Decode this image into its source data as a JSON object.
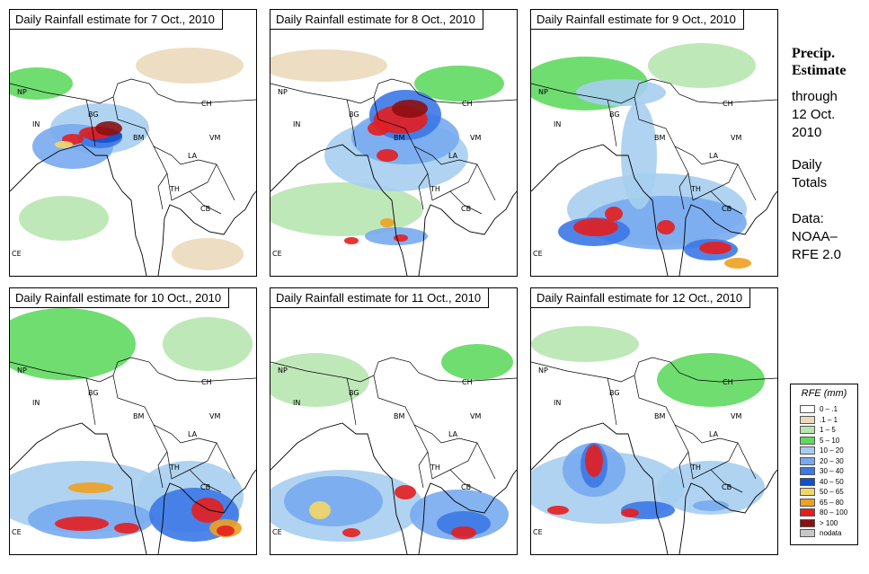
{
  "panels": [
    {
      "title": "Daily Rainfall estimate for  7 Oct., 2010"
    },
    {
      "title": "Daily Rainfall estimate for  8 Oct., 2010"
    },
    {
      "title": "Daily Rainfall estimate for  9 Oct., 2010"
    },
    {
      "title": "Daily Rainfall estimate for  10 Oct., 2010"
    },
    {
      "title": "Daily Rainfall estimate for  11 Oct., 2010"
    },
    {
      "title": "Daily Rainfall estimate for  12 Oct., 2010"
    }
  ],
  "country_labels": [
    "NP",
    "IN",
    "BG",
    "CH",
    "BM",
    "VM",
    "LA",
    "TH",
    "CB",
    "CE"
  ],
  "side_panel": {
    "heading_line1": "Precip.",
    "heading_line2": "Estimate",
    "through": "through",
    "date_line1": "12 Oct.",
    "date_line2": "2010",
    "totals_line1": "Daily",
    "totals_line2": "Totals",
    "data_line1": "Data:",
    "data_line2": "NOAA–",
    "data_line3": "RFE 2.0"
  },
  "legend": {
    "title": "RFE (mm)",
    "items": [
      {
        "label": "0 – .1",
        "color": "#ffffff"
      },
      {
        "label": ".1 – 1",
        "color": "#ebd9bd"
      },
      {
        "label": "1 – 5",
        "color": "#b8e6b0"
      },
      {
        "label": "5 – 10",
        "color": "#60d960"
      },
      {
        "label": "10 – 20",
        "color": "#a6cef0"
      },
      {
        "label": "20 – 30",
        "color": "#78aaf0"
      },
      {
        "label": "30 – 40",
        "color": "#3c78e6"
      },
      {
        "label": "40 – 50",
        "color": "#1450c8"
      },
      {
        "label": "50 – 65",
        "color": "#f5d764"
      },
      {
        "label": "65 – 80",
        "color": "#f0a020"
      },
      {
        "label": "80 – 100",
        "color": "#e61e1e"
      },
      {
        "label": "> 100",
        "color": "#8c1010"
      },
      {
        "label": "nodata",
        "color": "#c8c8c8"
      }
    ]
  }
}
